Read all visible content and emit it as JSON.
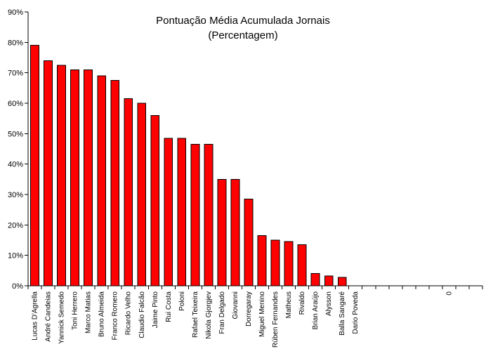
{
  "chart_data": {
    "type": "bar",
    "title": "Pontuação Média Acumulada Jornais",
    "subtitle": "(Percentagem)",
    "xlabel": "",
    "ylabel": "",
    "ylim": [
      0,
      90
    ],
    "y_tick_labels": [
      "0%",
      "10%",
      "20%",
      "30%",
      "40%",
      "50%",
      "60%",
      "70%",
      "80%",
      "90%"
    ],
    "grid": false,
    "bar_color": "#ff0000",
    "bar_edge_color": "#000000",
    "categories": [
      "Lucas D'Agrella",
      "André Candeias",
      "Yannick Semedo",
      "Toni Herrero",
      "Marco Matias",
      "Bruno Almeida",
      "Franco Romero",
      "Ricardo Velho",
      "Claudio Falcão",
      "Jaime Pinto",
      "Rui Costa",
      "Poloni",
      "Rafael Teixeira",
      "Nikola Gjorgjev",
      "Fran Delgado",
      "Giovanni",
      "Dorregaray",
      "Miguel Menino",
      "Rúben Fernandes",
      "Matheus",
      "Rivaldo",
      "Brian Araújo",
      "Alysson",
      "Balla Sangaré",
      "Dario Poveda",
      "",
      "",
      "",
      "",
      "",
      "",
      "0",
      "",
      ""
    ],
    "values": [
      79,
      74,
      72.5,
      71,
      71,
      69,
      67.5,
      61.5,
      60,
      56,
      48.5,
      48.5,
      46.5,
      46.5,
      35,
      35,
      28.5,
      16.5,
      15,
      14.5,
      13.5,
      4,
      3.2,
      2.8,
      0,
      0,
      0,
      0,
      0,
      0,
      0,
      0,
      0,
      0
    ]
  }
}
